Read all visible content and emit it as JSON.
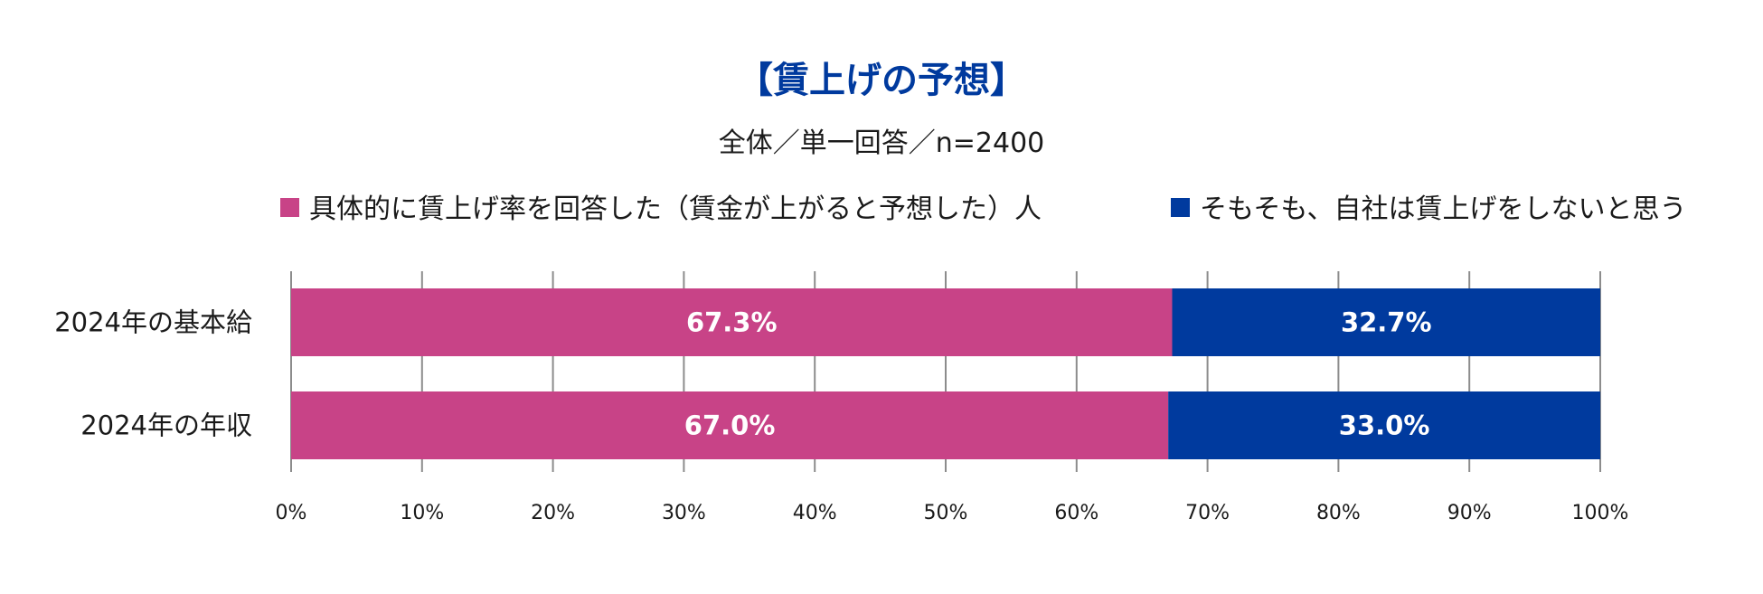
{
  "chart_data": {
    "type": "bar",
    "orientation": "horizontal",
    "stacked": true,
    "title": "【賃上げの予想】",
    "subtitle": "全体／単一回答／n=2400",
    "categories": [
      "2024年の基本給",
      "2024年の年収"
    ],
    "series": [
      {
        "name": "具体的に賃上げ率を回答した（賃金が上がると予想した）人",
        "color": "#C84387",
        "values": [
          67.3,
          67.0
        ],
        "labels": [
          "67.3%",
          "67.0%"
        ]
      },
      {
        "name": "そもそも、自社は賃上げをしないと思う",
        "color": "#003A9E",
        "values": [
          32.7,
          33.0
        ],
        "labels": [
          "32.7%",
          "33.0%"
        ]
      }
    ],
    "xlim": [
      0,
      100
    ],
    "xticks": [
      "0%",
      "10%",
      "20%",
      "30%",
      "40%",
      "50%",
      "60%",
      "70%",
      "80%",
      "90%",
      "100%"
    ],
    "grid": true,
    "legend_position": "top",
    "title_color": "#003A9E",
    "text_color": "#1a1a1a",
    "grid_color": "#8c8c8c"
  }
}
